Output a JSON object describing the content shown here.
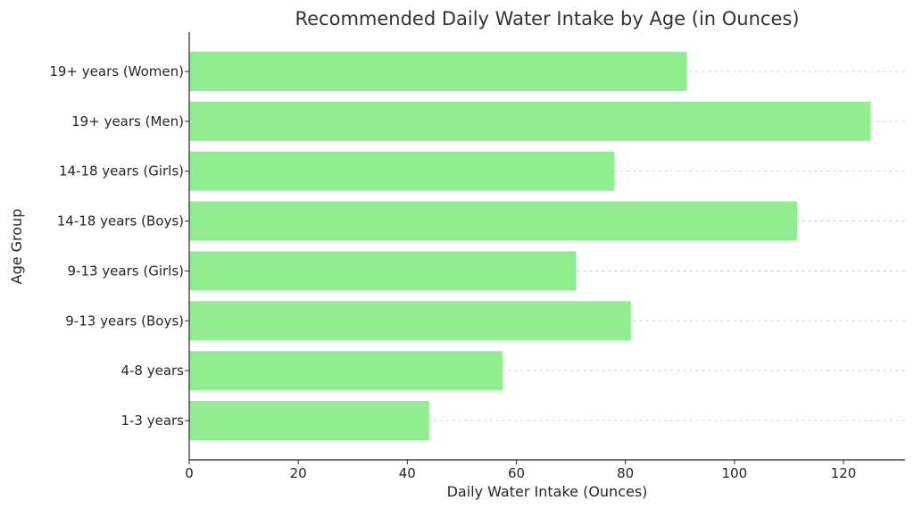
{
  "chart_data": {
    "type": "bar",
    "orientation": "horizontal",
    "title": "Recommended Daily Water Intake by Age (in Ounces)",
    "xlabel": "Daily Water Intake (Ounces)",
    "ylabel": "Age Group",
    "categories": [
      "1-3 years",
      "4-8 years",
      "9-13 years (Boys)",
      "9-13 years (Girls)",
      "14-18 years (Boys)",
      "14-18 years (Girls)",
      "19+ years (Men)",
      "19+ years (Women)"
    ],
    "values": [
      44,
      57.5,
      81,
      71,
      111.5,
      78,
      125,
      91.3
    ],
    "xlim": [
      0,
      131.3
    ],
    "xticks": [
      0,
      20,
      40,
      60,
      80,
      100,
      120
    ],
    "grid": "x-dashed",
    "bar_color": "#90ee90"
  }
}
